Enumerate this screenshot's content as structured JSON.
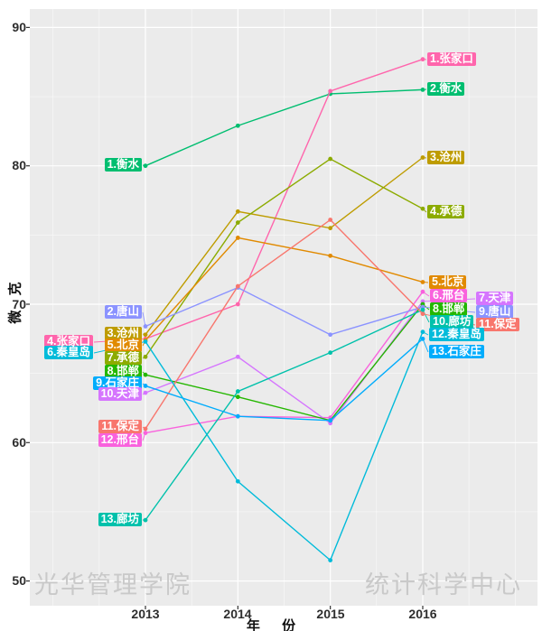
{
  "watermarks": {
    "left": "光华管理学院",
    "right": "统计科学中心"
  },
  "axes": {
    "x_title": "年 份",
    "y_title": "微 克",
    "x_ticks": [
      "2013",
      "2014",
      "2015",
      "2016"
    ],
    "y_ticks": [
      "90",
      "80",
      "70",
      "60",
      "50"
    ]
  },
  "chart_data": {
    "type": "line",
    "title": "",
    "xlabel": "年 份",
    "ylabel": "微 克",
    "x": [
      2013,
      2014,
      2015,
      2016
    ],
    "ylim": [
      48,
      92
    ],
    "yticks": [
      50,
      60,
      70,
      80,
      90
    ],
    "grid": true,
    "panel_bg": "#EBEBEB",
    "grid_color": "#FFFFFF",
    "legend": "none (direct ranked labels at both ends)",
    "series": [
      {
        "city": "衡水",
        "color": "#00BE70",
        "values": [
          80.0,
          82.9,
          85.2,
          85.5
        ]
      },
      {
        "city": "张家口",
        "color": "#FF65AC",
        "values": [
          67.5,
          70.0,
          85.4,
          87.7
        ]
      },
      {
        "city": "沧州",
        "color": "#BE9C00",
        "values": [
          67.8,
          76.7,
          75.5,
          80.6
        ]
      },
      {
        "city": "承德",
        "color": "#8CAB00",
        "values": [
          66.2,
          75.9,
          80.5,
          76.9
        ]
      },
      {
        "city": "北京",
        "color": "#E18A00",
        "values": [
          67.4,
          74.8,
          73.5,
          71.6
        ]
      },
      {
        "city": "邢台",
        "color": "#F962DD",
        "values": [
          60.7,
          61.9,
          61.8,
          70.9
        ]
      },
      {
        "city": "天津",
        "color": "#D575FE",
        "values": [
          63.6,
          66.2,
          61.4,
          70.2
        ]
      },
      {
        "city": "邯郸",
        "color": "#24B700",
        "values": [
          64.9,
          63.3,
          61.6,
          70.0
        ]
      },
      {
        "city": "唐山",
        "color": "#8B93FF",
        "values": [
          68.4,
          71.2,
          67.8,
          69.8
        ]
      },
      {
        "city": "廊坊",
        "color": "#00C1AB",
        "values": [
          54.4,
          63.7,
          66.5,
          69.6
        ]
      },
      {
        "city": "保定",
        "color": "#F8766D",
        "values": [
          61.0,
          71.3,
          76.1,
          69.3
        ]
      },
      {
        "city": "秦皇岛",
        "color": "#00BBDA",
        "values": [
          67.3,
          57.2,
          51.5,
          68.0
        ]
      },
      {
        "city": "石家庄",
        "color": "#00ACFC",
        "values": [
          64.1,
          61.9,
          61.6,
          67.5
        ]
      }
    ],
    "rank_labels_2013": [
      {
        "text": "1.衡水",
        "city": "衡水"
      },
      {
        "text": "2.唐山",
        "city": "唐山"
      },
      {
        "text": "3.沧州",
        "city": "沧州"
      },
      {
        "text": "4.张家口",
        "city": "张家口"
      },
      {
        "text": "5.北京",
        "city": "北京"
      },
      {
        "text": "6.秦皇岛",
        "city": "秦皇岛"
      },
      {
        "text": "7.承德",
        "city": "承德"
      },
      {
        "text": "8.邯郸",
        "city": "邯郸"
      },
      {
        "text": "9.石家庄",
        "city": "石家庄"
      },
      {
        "text": "10.天津",
        "city": "天津"
      },
      {
        "text": "11.保定",
        "city": "保定"
      },
      {
        "text": "12.邢台",
        "city": "邢台"
      },
      {
        "text": "13.廊坊",
        "city": "廊坊"
      }
    ],
    "rank_labels_2016": [
      {
        "text": "1.张家口",
        "city": "张家口"
      },
      {
        "text": "2.衡水",
        "city": "衡水"
      },
      {
        "text": "3.沧州",
        "city": "沧州"
      },
      {
        "text": "4.承德",
        "city": "承德"
      },
      {
        "text": "5.北京",
        "city": "北京"
      },
      {
        "text": "6.邢台",
        "city": "邢台"
      },
      {
        "text": "7.天津",
        "city": "天津"
      },
      {
        "text": "8.邯郸",
        "city": "邯郸"
      },
      {
        "text": "9.唐山",
        "city": "唐山"
      },
      {
        "text": "10.廊坊",
        "city": "廊坊"
      },
      {
        "text": "11.保定",
        "city": "保定"
      },
      {
        "text": "12.秦皇岛",
        "city": "秦皇岛"
      },
      {
        "text": "13.石家庄",
        "city": "石家庄"
      }
    ]
  }
}
